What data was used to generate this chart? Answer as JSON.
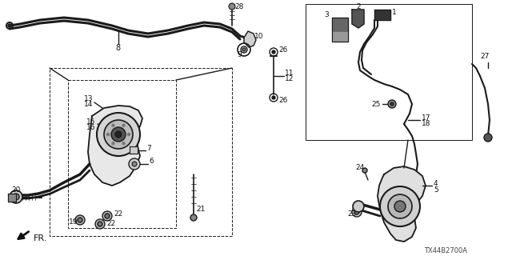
{
  "bg_color": "#ffffff",
  "diagram_code": "TX44B2700A",
  "fr_label": "FR.",
  "lc": "#1a1a1a"
}
